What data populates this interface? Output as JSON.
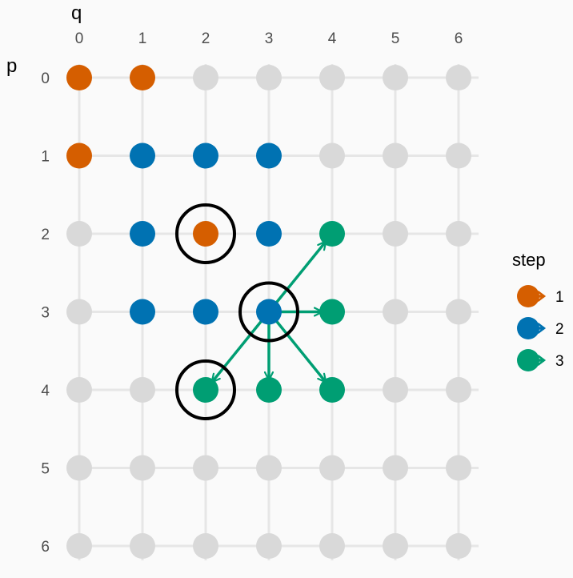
{
  "chart_data": {
    "type": "scatter",
    "xlabel": "q",
    "ylabel": "p",
    "x_ticks": [
      0,
      1,
      2,
      3,
      4,
      5,
      6
    ],
    "y_ticks": [
      0,
      1,
      2,
      3,
      4,
      5,
      6
    ],
    "xlim": [
      0,
      6
    ],
    "ylim": [
      0,
      6
    ],
    "y_reversed": true,
    "x_axis_position": "top",
    "grid": true,
    "background_point_color": "#d9d9d9",
    "legend": {
      "title": "step",
      "placement": "right",
      "entries": [
        {
          "label": "1",
          "color": "#d55e00"
        },
        {
          "label": "2",
          "color": "#0072b2"
        },
        {
          "label": "3",
          "color": "#009e73"
        }
      ]
    },
    "series": [
      {
        "name": "1",
        "color": "#d55e00",
        "points": [
          [
            0,
            0
          ],
          [
            1,
            0
          ],
          [
            0,
            1
          ],
          [
            2,
            2
          ]
        ]
      },
      {
        "name": "2",
        "color": "#0072b2",
        "points": [
          [
            1,
            1
          ],
          [
            2,
            1
          ],
          [
            3,
            1
          ],
          [
            1,
            2
          ],
          [
            3,
            2
          ],
          [
            1,
            3
          ],
          [
            2,
            3
          ],
          [
            3,
            3
          ]
        ]
      },
      {
        "name": "3",
        "color": "#009e73",
        "points": [
          [
            4,
            2
          ],
          [
            4,
            3
          ],
          [
            2,
            4
          ],
          [
            3,
            4
          ],
          [
            4,
            4
          ]
        ]
      }
    ],
    "arrows": {
      "color": "#009e73",
      "from": [
        3,
        3
      ],
      "to": [
        [
          4,
          2
        ],
        [
          4,
          3
        ],
        [
          2,
          4
        ],
        [
          3,
          4
        ],
        [
          4,
          4
        ]
      ]
    },
    "highlight_circles": [
      [
        2,
        2
      ],
      [
        3,
        3
      ],
      [
        2,
        4
      ]
    ]
  }
}
